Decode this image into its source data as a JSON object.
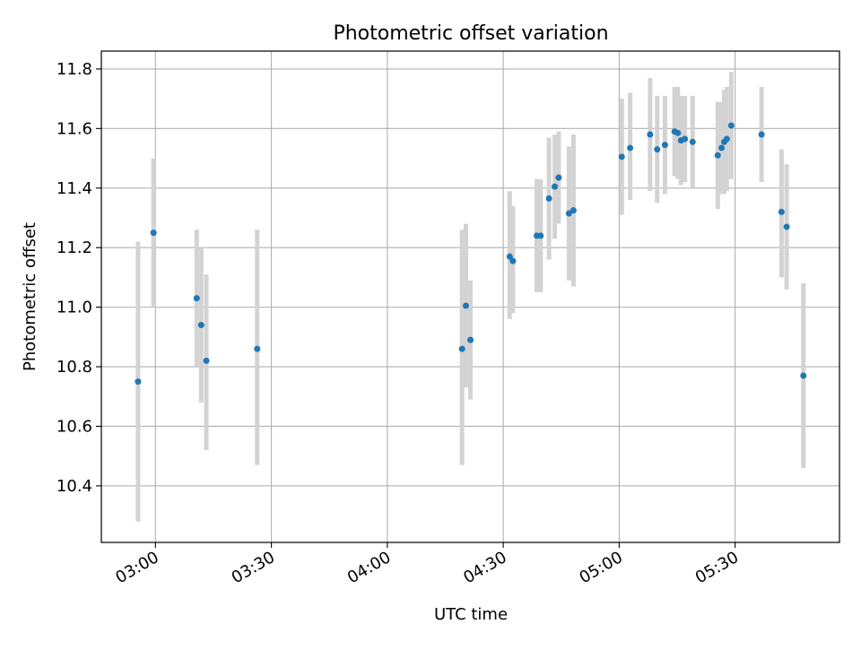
{
  "chart_data": {
    "type": "scatter",
    "title": "Photometric offset variation",
    "xlabel": "UTC time",
    "ylabel": "Photometric offset",
    "x_axis_type": "time",
    "xlim": [
      "02:46",
      "05:57"
    ],
    "ylim": [
      10.21,
      11.86
    ],
    "x_ticks": [
      "03:00",
      "03:30",
      "04:00",
      "04:30",
      "05:00",
      "05:30"
    ],
    "y_ticks": [
      10.4,
      10.6,
      10.8,
      11.0,
      11.2,
      11.4,
      11.6,
      11.8
    ],
    "y_tick_labels": [
      "10.4",
      "10.6",
      "10.8",
      "11.0",
      "11.2",
      "11.4",
      "11.6",
      "11.8"
    ],
    "grid": true,
    "legend": "none",
    "colors": {
      "point": "#1f77b4",
      "errorbar": "#d3d3d3",
      "grid": "#b0b0b0"
    },
    "series": [
      {
        "points": [
          {
            "x": "02:55:30",
            "y": 10.75,
            "ymin": 10.28,
            "ymax": 11.22
          },
          {
            "x": "02:59:30",
            "y": 11.25,
            "ymin": 11.0,
            "ymax": 11.5
          },
          {
            "x": "03:10:40",
            "y": 11.03,
            "ymin": 10.8,
            "ymax": 11.26
          },
          {
            "x": "03:11:50",
            "y": 10.94,
            "ymin": 10.68,
            "ymax": 11.2
          },
          {
            "x": "03:13:10",
            "y": 10.82,
            "ymin": 10.52,
            "ymax": 11.11
          },
          {
            "x": "03:26:20",
            "y": 10.86,
            "ymin": 10.47,
            "ymax": 11.26
          },
          {
            "x": "04:19:20",
            "y": 10.86,
            "ymin": 10.47,
            "ymax": 11.26
          },
          {
            "x": "04:20:20",
            "y": 11.005,
            "ymin": 10.73,
            "ymax": 11.28
          },
          {
            "x": "04:21:30",
            "y": 10.89,
            "ymin": 10.69,
            "ymax": 11.09
          },
          {
            "x": "04:31:40",
            "y": 11.17,
            "ymin": 10.96,
            "ymax": 11.39
          },
          {
            "x": "04:32:30",
            "y": 11.155,
            "ymin": 10.98,
            "ymax": 11.34
          },
          {
            "x": "04:38:40",
            "y": 11.24,
            "ymin": 11.05,
            "ymax": 11.43
          },
          {
            "x": "04:39:40",
            "y": 11.24,
            "ymin": 11.05,
            "ymax": 11.43
          },
          {
            "x": "04:41:50",
            "y": 11.365,
            "ymin": 11.16,
            "ymax": 11.57
          },
          {
            "x": "04:43:20",
            "y": 11.405,
            "ymin": 11.23,
            "ymax": 11.58
          },
          {
            "x": "04:44:20",
            "y": 11.435,
            "ymin": 11.28,
            "ymax": 11.59
          },
          {
            "x": "04:47:00",
            "y": 11.315,
            "ymin": 11.09,
            "ymax": 11.54
          },
          {
            "x": "04:48:10",
            "y": 11.325,
            "ymin": 11.07,
            "ymax": 11.58
          },
          {
            "x": "05:00:40",
            "y": 11.505,
            "ymin": 11.31,
            "ymax": 11.7
          },
          {
            "x": "05:02:50",
            "y": 11.535,
            "ymin": 11.36,
            "ymax": 11.72
          },
          {
            "x": "05:08:00",
            "y": 11.58,
            "ymin": 11.39,
            "ymax": 11.77
          },
          {
            "x": "05:09:50",
            "y": 11.53,
            "ymin": 11.35,
            "ymax": 11.71
          },
          {
            "x": "05:11:50",
            "y": 11.545,
            "ymin": 11.38,
            "ymax": 11.71
          },
          {
            "x": "05:14:20",
            "y": 11.59,
            "ymin": 11.44,
            "ymax": 11.74
          },
          {
            "x": "05:15:10",
            "y": 11.585,
            "ymin": 11.43,
            "ymax": 11.74
          },
          {
            "x": "05:16:00",
            "y": 11.56,
            "ymin": 11.41,
            "ymax": 11.71
          },
          {
            "x": "05:17:00",
            "y": 11.565,
            "ymin": 11.42,
            "ymax": 11.71
          },
          {
            "x": "05:19:00",
            "y": 11.555,
            "ymin": 11.4,
            "ymax": 11.71
          },
          {
            "x": "05:25:30",
            "y": 11.51,
            "ymin": 11.33,
            "ymax": 11.69
          },
          {
            "x": "05:26:30",
            "y": 11.535,
            "ymin": 11.38,
            "ymax": 11.69
          },
          {
            "x": "05:27:10",
            "y": 11.555,
            "ymin": 11.38,
            "ymax": 11.73
          },
          {
            "x": "05:27:50",
            "y": 11.565,
            "ymin": 11.39,
            "ymax": 11.74
          },
          {
            "x": "05:29:00",
            "y": 11.61,
            "ymin": 11.43,
            "ymax": 11.79
          },
          {
            "x": "05:36:50",
            "y": 11.58,
            "ymin": 11.42,
            "ymax": 11.74
          },
          {
            "x": "05:42:00",
            "y": 11.32,
            "ymin": 11.1,
            "ymax": 11.53
          },
          {
            "x": "05:43:20",
            "y": 11.27,
            "ymin": 11.06,
            "ymax": 11.48
          },
          {
            "x": "05:47:40",
            "y": 10.77,
            "ymin": 10.46,
            "ymax": 11.08
          }
        ]
      }
    ]
  }
}
